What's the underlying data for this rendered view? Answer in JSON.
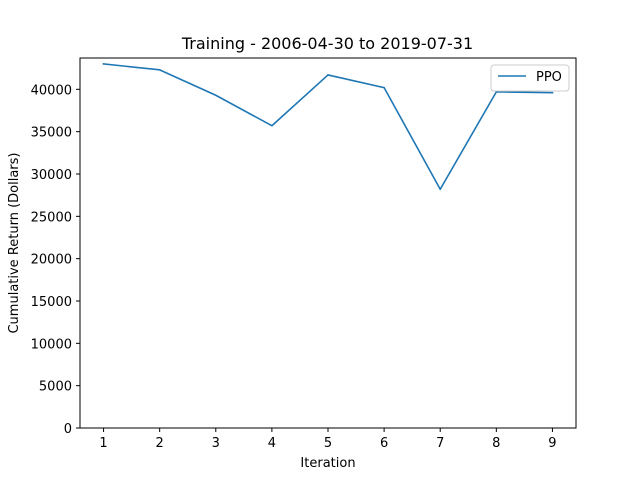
{
  "chart_data": {
    "type": "line",
    "title": "Training - 2006-04-30 to 2019-07-31",
    "xlabel": "Iteration",
    "ylabel": "Cumulative Return (Dollars)",
    "x": [
      1,
      2,
      3,
      4,
      5,
      6,
      7,
      8,
      9
    ],
    "xlim": [
      0.58,
      9.42
    ],
    "ylim": [
      0,
      43700
    ],
    "xticks": [
      1,
      2,
      3,
      4,
      5,
      6,
      7,
      8,
      9
    ],
    "yticks": [
      0,
      5000,
      10000,
      15000,
      20000,
      25000,
      30000,
      35000,
      40000
    ],
    "grid": false,
    "legend_position": "top-right",
    "series": [
      {
        "name": "PPO",
        "color": "#1f77b4",
        "values": [
          43000,
          42300,
          39300,
          35700,
          41700,
          40200,
          28200,
          39700,
          39600
        ]
      }
    ]
  }
}
